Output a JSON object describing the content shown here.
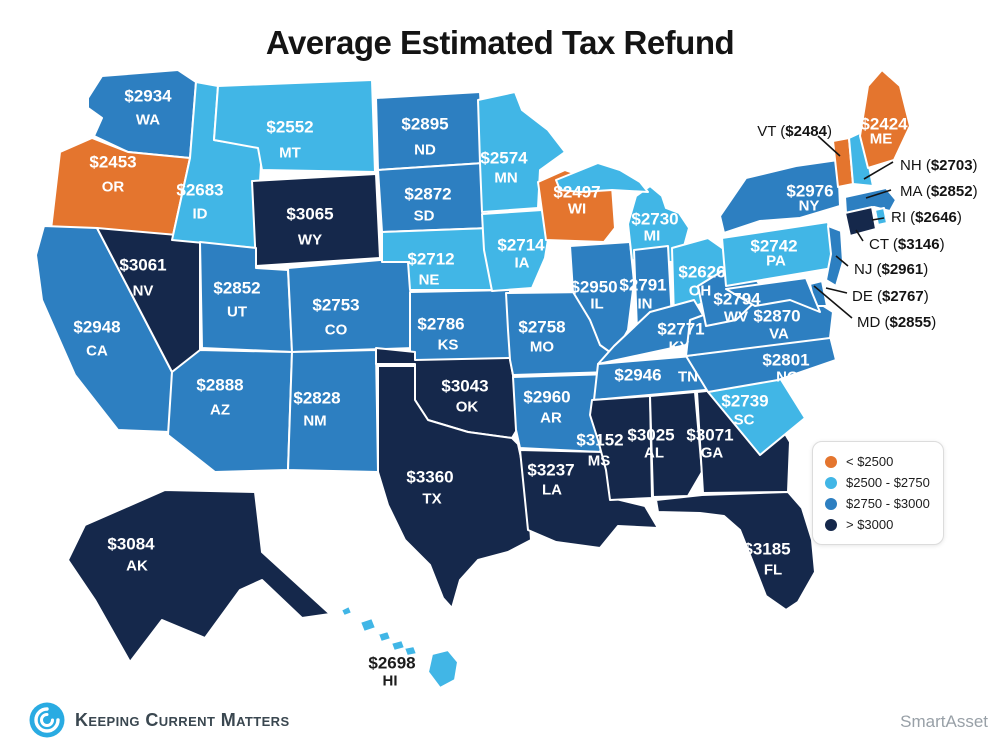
{
  "title": "Average Estimated Tax Refund",
  "chart_data": {
    "type": "heatmap",
    "variant": "us-state-choropleth",
    "title": "Average Estimated Tax Refund",
    "value_unit": "USD ($)",
    "legend_position": "right",
    "legend": [
      {
        "label": "< $2500",
        "color": "#E4752E"
      },
      {
        "label": "$2500 - $2750",
        "color": "#41B6E6"
      },
      {
        "label": "$2750 - $3000",
        "color": "#2D7FC1"
      },
      {
        "label": "> $3000",
        "color": "#15284B"
      }
    ],
    "states": [
      {
        "abbr": "WA",
        "value": 2934,
        "tier": 2
      },
      {
        "abbr": "OR",
        "value": 2453,
        "tier": 0
      },
      {
        "abbr": "CA",
        "value": 2948,
        "tier": 2
      },
      {
        "abbr": "NV",
        "value": 3061,
        "tier": 3
      },
      {
        "abbr": "ID",
        "value": 2683,
        "tier": 1
      },
      {
        "abbr": "MT",
        "value": 2552,
        "tier": 1
      },
      {
        "abbr": "WY",
        "value": 3065,
        "tier": 3
      },
      {
        "abbr": "UT",
        "value": 2852,
        "tier": 2
      },
      {
        "abbr": "CO",
        "value": 2753,
        "tier": 2
      },
      {
        "abbr": "AZ",
        "value": 2888,
        "tier": 2
      },
      {
        "abbr": "NM",
        "value": 2828,
        "tier": 2
      },
      {
        "abbr": "ND",
        "value": 2895,
        "tier": 2
      },
      {
        "abbr": "SD",
        "value": 2872,
        "tier": 2
      },
      {
        "abbr": "NE",
        "value": 2712,
        "tier": 1
      },
      {
        "abbr": "KS",
        "value": 2786,
        "tier": 2
      },
      {
        "abbr": "OK",
        "value": 3043,
        "tier": 3
      },
      {
        "abbr": "TX",
        "value": 3360,
        "tier": 3
      },
      {
        "abbr": "MN",
        "value": 2574,
        "tier": 1
      },
      {
        "abbr": "IA",
        "value": 2714,
        "tier": 1
      },
      {
        "abbr": "MO",
        "value": 2758,
        "tier": 2
      },
      {
        "abbr": "AR",
        "value": 2960,
        "tier": 2
      },
      {
        "abbr": "LA",
        "value": 3237,
        "tier": 3
      },
      {
        "abbr": "WI",
        "value": 2497,
        "tier": 0
      },
      {
        "abbr": "IL",
        "value": 2950,
        "tier": 2
      },
      {
        "abbr": "MI",
        "value": 2730,
        "tier": 1
      },
      {
        "abbr": "IN",
        "value": 2791,
        "tier": 2
      },
      {
        "abbr": "OH",
        "value": 2626,
        "tier": 1
      },
      {
        "abbr": "KY",
        "value": 2771,
        "tier": 2
      },
      {
        "abbr": "TN",
        "value": 2946,
        "tier": 2
      },
      {
        "abbr": "MS",
        "value": 3152,
        "tier": 3
      },
      {
        "abbr": "AL",
        "value": 3025,
        "tier": 3
      },
      {
        "abbr": "GA",
        "value": 3071,
        "tier": 3
      },
      {
        "abbr": "FL",
        "value": 3185,
        "tier": 3
      },
      {
        "abbr": "SC",
        "value": 2739,
        "tier": 1
      },
      {
        "abbr": "NC",
        "value": 2801,
        "tier": 2
      },
      {
        "abbr": "VA",
        "value": 2870,
        "tier": 2
      },
      {
        "abbr": "WV",
        "value": 2794,
        "tier": 2
      },
      {
        "abbr": "PA",
        "value": 2742,
        "tier": 1
      },
      {
        "abbr": "NY",
        "value": 2976,
        "tier": 2
      },
      {
        "abbr": "VT",
        "value": 2484,
        "tier": 0,
        "callout": true
      },
      {
        "abbr": "NH",
        "value": 2703,
        "tier": 1,
        "callout": true
      },
      {
        "abbr": "MA",
        "value": 2852,
        "tier": 2,
        "callout": true
      },
      {
        "abbr": "RI",
        "value": 2646,
        "tier": 1,
        "callout": true
      },
      {
        "abbr": "CT",
        "value": 3146,
        "tier": 3,
        "callout": true
      },
      {
        "abbr": "NJ",
        "value": 2961,
        "tier": 2,
        "callout": true
      },
      {
        "abbr": "DE",
        "value": 2767,
        "tier": 2,
        "callout": true
      },
      {
        "abbr": "MD",
        "value": 2855,
        "tier": 2,
        "callout": true
      },
      {
        "abbr": "ME",
        "value": 2424,
        "tier": 0
      },
      {
        "abbr": "AK",
        "value": 3084,
        "tier": 3
      },
      {
        "abbr": "HI",
        "value": 2698,
        "tier": 1
      }
    ]
  },
  "footer": {
    "brand": "Keeping Current Matters",
    "credit": "SmartAsset"
  }
}
